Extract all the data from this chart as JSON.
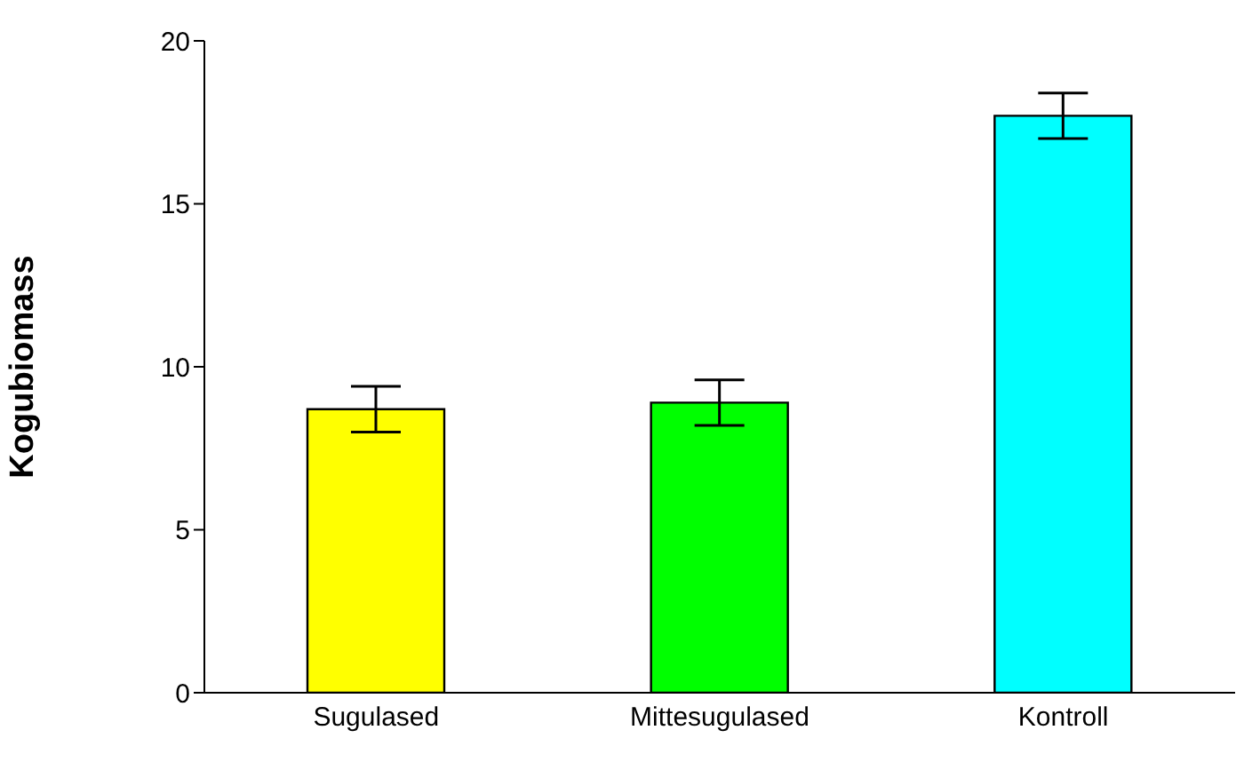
{
  "chart_data": {
    "type": "bar",
    "ylabel": "Kogubiomass",
    "categories": [
      "Sugulased",
      "Mittesugulased",
      "Kontroll"
    ],
    "values": [
      8.7,
      8.9,
      17.7
    ],
    "colors": [
      "#ffff00",
      "#00ff00",
      "#00ffff"
    ],
    "errors": [
      0.7,
      0.7,
      0.7
    ],
    "ylim": [
      0,
      20
    ],
    "yticks": [
      0,
      5,
      10,
      15,
      20
    ],
    "grid": false,
    "legend": false
  }
}
